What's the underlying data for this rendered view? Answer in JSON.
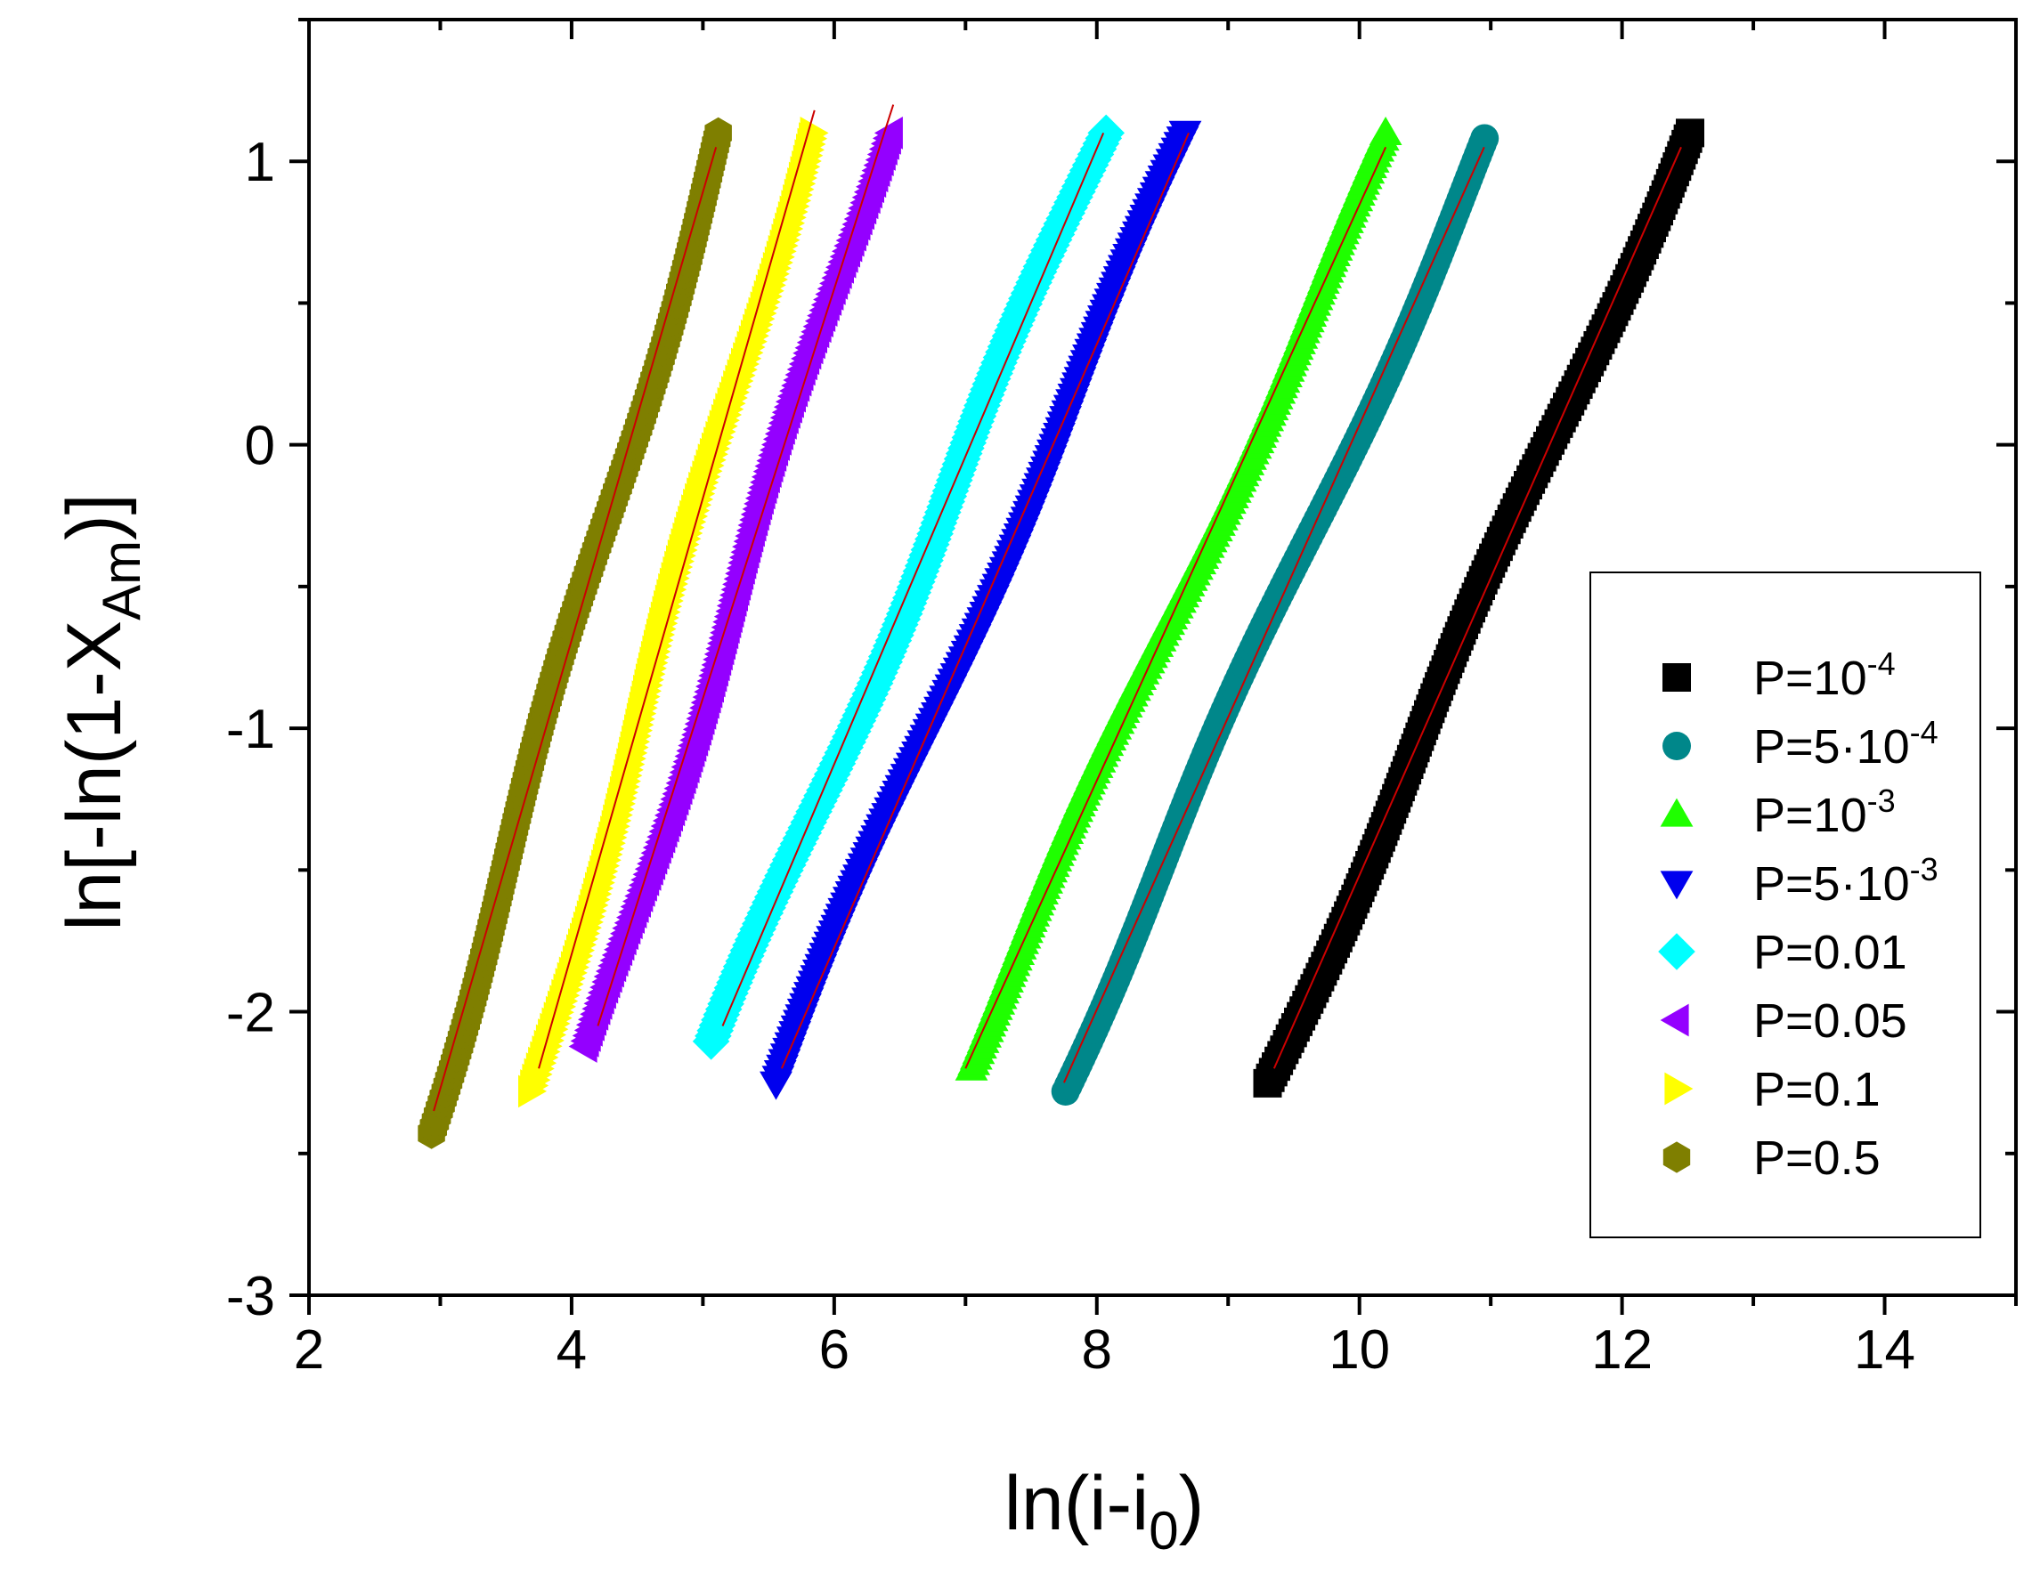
{
  "chart_data": {
    "type": "scatter",
    "title": "",
    "xlabel": {
      "base": "ln(i-i",
      "sub": "0",
      "tail": ")"
    },
    "ylabel": {
      "base": "ln[-ln(1-X",
      "sub": "Am",
      "tail": ")]"
    },
    "xlim": [
      2,
      15
    ],
    "ylim": [
      -3,
      1.5
    ],
    "x_ticks": [
      2,
      4,
      6,
      8,
      10,
      12,
      14
    ],
    "x_tick_labels": [
      "2",
      "4",
      "6",
      "8",
      "10",
      "12",
      "14"
    ],
    "y_ticks": [
      -3,
      -2,
      -1,
      0,
      1
    ],
    "y_tick_labels": [
      "-3",
      "-2",
      "-1",
      "0",
      "1"
    ],
    "grid": false,
    "legend_position": "bottom-right",
    "fit_line_color": "#cc0000",
    "series": [
      {
        "name": "P=10^-4",
        "label": {
          "base": "P=10",
          "sup": "-4"
        },
        "marker": "square",
        "color": "#000000",
        "x_start": 9.3,
        "x_end": 12.6,
        "fit_x": [
          9.35,
          12.45
        ],
        "fit_y": [
          -2.2,
          1.05
        ]
      },
      {
        "name": "P=5·10^-4",
        "label": {
          "base": "P=5·10",
          "sup": "-4"
        },
        "marker": "circle",
        "color": "#00878A",
        "x_start": 7.72,
        "x_end": 10.98,
        "fit_x": [
          7.75,
          10.95
        ],
        "fit_y": [
          -2.25,
          1.05
        ]
      },
      {
        "name": "P=10^-3",
        "label": {
          "base": "P=10",
          "sup": "-3"
        },
        "marker": "triangle-up",
        "color": "#1FFF00",
        "x_start": 7.0,
        "x_end": 10.3,
        "fit_x": [
          7.0,
          10.2
        ],
        "fit_y": [
          -2.2,
          1.05
        ]
      },
      {
        "name": "P=5·10^-3",
        "label": {
          "base": "P=5·10",
          "sup": "-3"
        },
        "marker": "triangle-down",
        "color": "#0000EE",
        "x_start": 5.55,
        "x_end": 8.75,
        "fit_x": [
          5.6,
          8.7
        ],
        "fit_y": [
          -2.2,
          1.1
        ]
      },
      {
        "name": "P=0.01",
        "label": {
          "base": "P=0.01",
          "sup": ""
        },
        "marker": "diamond",
        "color": "#00FFFF",
        "x_start": 5.1,
        "x_end": 8.1,
        "fit_x": [
          5.15,
          8.05
        ],
        "fit_y": [
          -2.05,
          1.1
        ]
      },
      {
        "name": "P=0.05",
        "label": {
          "base": "P=0.05",
          "sup": ""
        },
        "marker": "triangle-left",
        "color": "#9400FF",
        "x_start": 4.15,
        "x_end": 6.5,
        "fit_x": [
          4.2,
          6.45
        ],
        "fit_y": [
          -2.05,
          1.2
        ]
      },
      {
        "name": "P=0.1",
        "label": {
          "base": "P=0.1",
          "sup": ""
        },
        "marker": "triangle-right",
        "color": "#FFFF00",
        "x_start": 3.7,
        "x_end": 5.9,
        "fit_x": [
          3.75,
          5.85
        ],
        "fit_y": [
          -2.2,
          1.18
        ]
      },
      {
        "name": "P=0.5",
        "label": {
          "base": "P=0.5",
          "sup": ""
        },
        "marker": "hexagon",
        "color": "#7F7F00",
        "x_start": 2.9,
        "x_end": 5.15,
        "fit_x": [
          2.95,
          5.1
        ],
        "fit_y": [
          -2.35,
          1.05
        ]
      }
    ]
  }
}
